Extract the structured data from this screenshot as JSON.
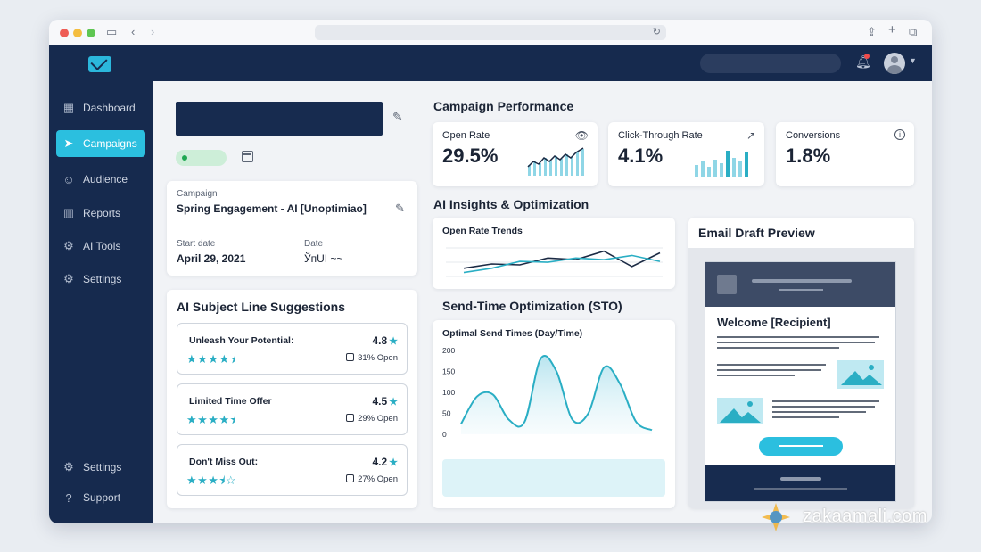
{
  "sidebar": {
    "items": [
      {
        "label": "Dashboard",
        "icon": "dashboard-icon"
      },
      {
        "label": "Campaigns",
        "icon": "send-icon",
        "active": true
      },
      {
        "label": "Audience",
        "icon": "users-icon"
      },
      {
        "label": "Reports",
        "icon": "bar-chart-icon"
      },
      {
        "label": "AI Tools",
        "icon": "gear-icon"
      },
      {
        "label": "Settings",
        "icon": "gear-icon"
      }
    ],
    "bottom_items": [
      {
        "label": "Settings",
        "icon": "gear-icon"
      },
      {
        "label": "Support",
        "icon": "help-icon"
      }
    ]
  },
  "campaign": {
    "label": "Campaign",
    "name": "Spring Engagement - AI [Unoptimiao]",
    "start_date_label": "Start date",
    "start_date": "April 29, 2021",
    "date_label": "Date",
    "date_value": "ЎпUI ~~"
  },
  "suggestions": {
    "heading": "AI Subject Line Suggestions",
    "items": [
      {
        "title": "Unleash Your Potential:",
        "score": "4.8",
        "open": "31% Open",
        "stars": "★★★★⯨"
      },
      {
        "title": "Limited Time Offer",
        "score": "4.5",
        "open": "29% Open",
        "stars": "★★★★⯨"
      },
      {
        "title": "Don't Miss Out:",
        "score": "4.2",
        "open": "27% Open",
        "stars": "★★★⯨☆"
      }
    ]
  },
  "performance": {
    "heading": "Campaign Performance",
    "kpis": [
      {
        "title": "Open Rate",
        "value": "29.5%",
        "icon": "eye-icon"
      },
      {
        "title": "Click-Through Rate",
        "value": "4.1%",
        "icon": "external-link-icon"
      },
      {
        "title": "Conversions",
        "value": "1.8%",
        "icon": "info-icon"
      }
    ]
  },
  "insights": {
    "heading": "AI Insights & Optimization",
    "trend_title": "Open Rate Trends"
  },
  "sto": {
    "heading": "Send-Time Optimization (STO)",
    "chart_title": "Optimal Send Times (Day/Time)"
  },
  "email_preview": {
    "heading": "Email Draft Preview",
    "title": "Welcome [Recipient]"
  },
  "watermark": {
    "text": "zakaamali.com"
  },
  "colors": {
    "navy": "#162a4e",
    "accent": "#2bbfdf",
    "teal": "#2aaec4"
  },
  "chart_data": [
    {
      "type": "line",
      "title": "Open Rate Trends",
      "x": [
        1,
        2,
        3,
        4,
        5,
        6,
        7,
        8
      ],
      "series": [
        {
          "values": [
            40,
            45,
            44,
            52,
            50,
            60,
            42,
            58
          ]
        },
        {
          "values": [
            35,
            40,
            48,
            47,
            52,
            50,
            55,
            48
          ]
        }
      ],
      "ylim": [
        20,
        70
      ]
    },
    {
      "type": "area",
      "title": "Optimal Send Times (Day/Time)",
      "yticks": [
        0,
        50,
        100,
        150,
        200
      ],
      "ylim": [
        0,
        200
      ],
      "x": [
        0,
        1,
        2,
        3,
        4,
        5,
        6,
        7,
        8,
        9,
        10,
        11,
        12
      ],
      "values": [
        25,
        90,
        95,
        35,
        30,
        180,
        150,
        35,
        50,
        160,
        120,
        30,
        10
      ]
    }
  ]
}
